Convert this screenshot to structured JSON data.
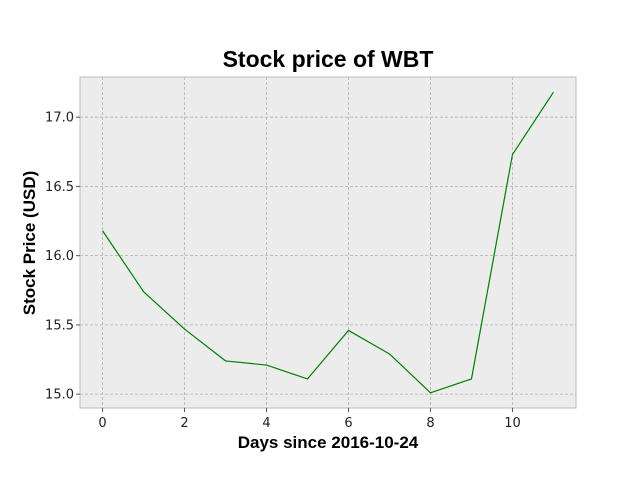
{
  "chart_data": {
    "type": "line",
    "title": "Stock price of WBT",
    "xlabel": "Days since 2016-10-24",
    "ylabel": "Stock Price (USD)",
    "x": [
      0,
      1,
      2,
      3,
      4,
      5,
      6,
      7,
      8,
      9,
      10,
      11
    ],
    "series": [
      {
        "values": [
          16.18,
          15.74,
          15.47,
          15.24,
          15.21,
          15.11,
          15.46,
          15.29,
          15.01,
          15.11,
          16.73,
          17.18
        ],
        "color": "#008000"
      }
    ],
    "xlim": [
      -0.55,
      11.55
    ],
    "ylim": [
      14.9,
      17.29
    ],
    "xticks": [
      0,
      2,
      4,
      6,
      8,
      10
    ],
    "xtick_labels": [
      "0",
      "2",
      "4",
      "6",
      "8",
      "10"
    ],
    "yticks": [
      15.0,
      15.5,
      16.0,
      16.5,
      17.0
    ],
    "ytick_labels": [
      "15.0",
      "15.5",
      "16.0",
      "16.5",
      "17.0"
    ],
    "grid": true,
    "colors": {
      "plot_background": "#ececec",
      "grid": "#b0b0b0",
      "frame": "#bcbcbc"
    }
  }
}
